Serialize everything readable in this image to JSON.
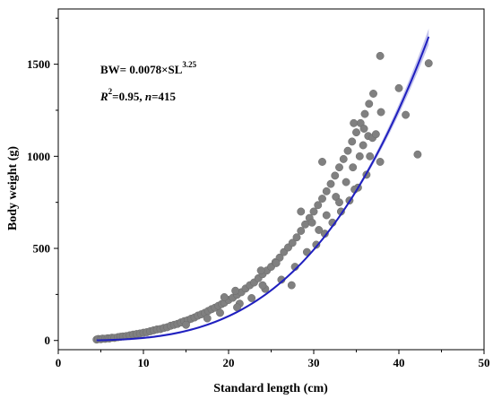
{
  "chart_data": {
    "type": "scatter",
    "xlabel": "Standard length (cm)",
    "ylabel": "Body weight (g)",
    "xlim": [
      0,
      50
    ],
    "ylim": [
      -50,
      1800
    ],
    "xticks": [
      0,
      10,
      20,
      30,
      40,
      50
    ],
    "yticks": [
      0,
      500,
      1000,
      1500
    ],
    "grid": false,
    "fit": {
      "equation_prefix": "BW= 0.0078×SL",
      "equation_exponent": "3.25",
      "r_symbol": "R",
      "r_superscript": "2",
      "r_value": "=0.95, ",
      "n_symbol": "n",
      "n_value": "=415",
      "a": 0.0078,
      "b": 3.25,
      "x_range": [
        4.5,
        43.5
      ],
      "line_color": "#1f1fbf",
      "band_color": "#a9a9e6"
    },
    "point_color": "#808080",
    "series": [
      {
        "x": [
          4.5,
          4.7,
          5.0,
          5.2,
          5.5,
          5.8,
          6.0,
          6.3,
          6.6,
          7.0,
          7.3,
          7.6,
          8.0,
          8.4,
          8.8,
          9.2,
          9.6,
          10.0,
          10.4,
          10.8,
          11.2,
          11.6,
          12.0,
          12.4,
          12.8,
          13.2,
          13.6,
          14.0,
          14.4,
          14.8,
          15.2,
          15.6,
          16.0,
          16.4,
          16.8,
          17.2,
          17.6,
          18.0,
          18.4,
          18.8,
          19.2,
          19.5,
          20.0,
          20.5,
          21.0,
          21.5,
          22.0,
          22.5,
          23.0,
          23.5,
          24.0,
          24.5,
          25.0,
          25.5,
          26.0,
          26.5,
          27.0,
          27.5,
          28.0,
          28.5,
          29.0,
          29.5,
          30.0,
          30.5,
          31.0,
          31.5,
          32.0,
          32.5,
          33.0,
          33.5,
          34.0,
          34.5,
          35.0,
          35.5,
          36.0,
          36.5,
          37.0,
          15.0,
          17.5,
          19.0,
          21.3,
          22.7,
          24.3,
          26.2,
          27.8,
          29.2,
          30.3,
          31.3,
          32.2,
          33.2,
          34.2,
          35.2,
          36.2,
          20.8,
          23.8,
          28.5,
          31.0,
          30.6,
          32.6,
          33.8,
          34.6,
          35.4,
          35.8,
          36.4,
          36.9,
          37.3,
          37.8,
          19.5,
          21.0,
          24.0,
          29.8,
          31.5,
          33.0,
          34.8,
          36.6,
          37.9,
          40.0,
          40.8,
          42.2,
          43.5,
          37.8,
          34.7,
          35.9,
          27.4,
          25.6
        ],
        "y": [
          5,
          8,
          7,
          10,
          9,
          12,
          11,
          15,
          14,
          18,
          20,
          22,
          24,
          28,
          32,
          35,
          38,
          42,
          45,
          50,
          55,
          60,
          62,
          68,
          72,
          80,
          85,
          90,
          98,
          105,
          110,
          118,
          125,
          135,
          142,
          150,
          160,
          170,
          178,
          188,
          198,
          205,
          220,
          232,
          248,
          262,
          282,
          300,
          315,
          338,
          360,
          380,
          400,
          425,
          450,
          480,
          505,
          530,
          560,
          595,
          630,
          665,
          700,
          735,
          770,
          810,
          850,
          895,
          940,
          985,
          1030,
          1080,
          1130,
          1180,
          1230,
          1285,
          1340,
          85,
          120,
          150,
          200,
          230,
          280,
          330,
          400,
          480,
          520,
          580,
          640,
          700,
          760,
          830,
          900,
          270,
          380,
          700,
          970,
          600,
          780,
          860,
          940,
          1000,
          1060,
          1110,
          1100,
          1120,
          970,
          235,
          180,
          300,
          640,
          680,
          750,
          820,
          1000,
          1240,
          1370,
          1225,
          1010,
          1505,
          1545,
          1180,
          1150,
          300,
          420
        ]
      }
    ]
  }
}
